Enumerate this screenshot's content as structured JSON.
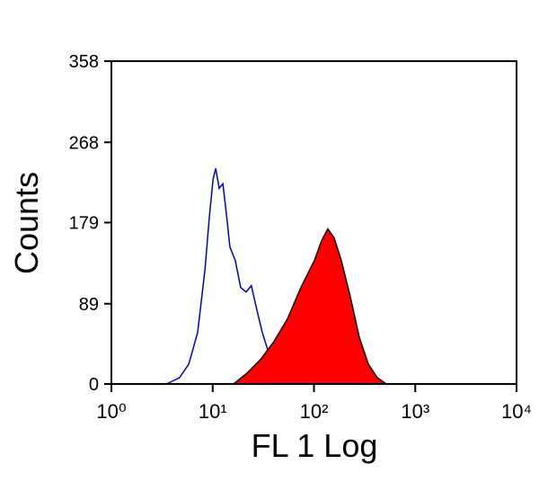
{
  "chart_data": {
    "type": "histogram-overlay",
    "xlabel": "FL 1 Log",
    "ylabel": "Counts",
    "xscale": "log",
    "xlim": [
      1,
      10000
    ],
    "xticks": [
      {
        "value": 1,
        "label": "10⁰"
      },
      {
        "value": 10,
        "label": "10¹"
      },
      {
        "value": 100,
        "label": "10²"
      },
      {
        "value": 1000,
        "label": "10³"
      },
      {
        "value": 10000,
        "label": "10⁴"
      }
    ],
    "ylim": [
      0,
      358
    ],
    "yticks": [
      0,
      89,
      179,
      268,
      358
    ],
    "series": [
      {
        "color": "#0000cc",
        "filled": false,
        "x": [
          3.5,
          4.7,
          5.8,
          7.1,
          8.4,
          9.3,
          10.1,
          10.7,
          11.6,
          12.6,
          13.7,
          14.8,
          16.7,
          18.9,
          21.4,
          24.1,
          26.7,
          30.9,
          36.3,
          44.5,
          60.5,
          82.3,
          124
        ],
        "values": [
          0,
          7,
          22,
          57,
          127,
          187,
          227,
          239,
          217,
          222,
          187,
          152,
          137,
          107,
          102,
          109,
          87,
          57,
          32,
          15,
          7,
          2,
          0
        ]
      },
      {
        "color": "#ff0000",
        "outline": "#000000",
        "filled": true,
        "x": [
          16.1,
          21.8,
          29.6,
          40.2,
          54.6,
          74.3,
          101,
          119,
          137,
          158,
          186,
          228,
          280,
          344,
          422,
          518
        ],
        "values": [
          0,
          12,
          27,
          47,
          72,
          107,
          137,
          159,
          172,
          162,
          137,
          97,
          52,
          22,
          7,
          0
        ]
      }
    ]
  }
}
